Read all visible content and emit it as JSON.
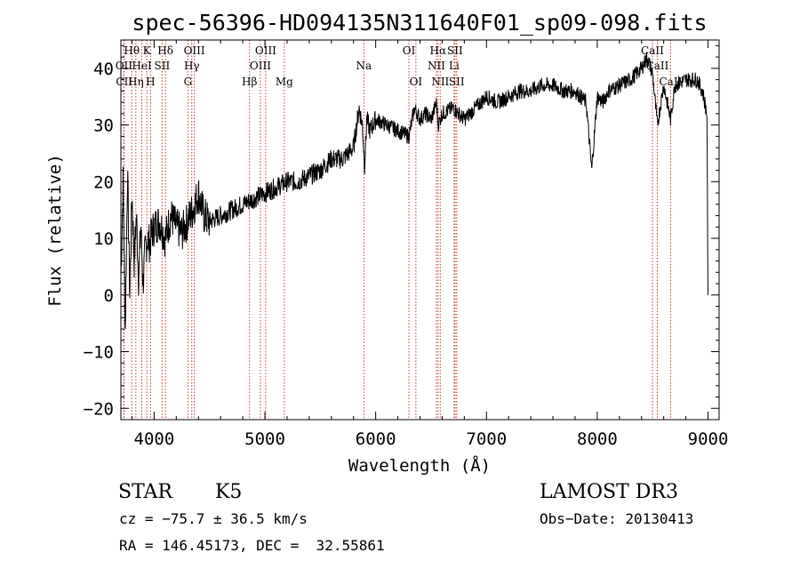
{
  "chart_data": {
    "type": "line",
    "title": "spec-56396-HD094135N311640F01_sp09-098.fits",
    "xlabel": "Wavelength (Å)",
    "ylabel": "Flux (relative)",
    "xlim": [
      3700,
      9100
    ],
    "ylim": [
      -22,
      45
    ],
    "x_ticks": [
      4000,
      5000,
      6000,
      7000,
      8000,
      9000
    ],
    "y_ticks": [
      -20,
      -10,
      0,
      10,
      20,
      30,
      40
    ],
    "grid": false,
    "series": [
      {
        "name": "flux",
        "x": [
          3700,
          3720,
          3740,
          3760,
          3780,
          3800,
          3820,
          3840,
          3860,
          3880,
          3900,
          3920,
          3940,
          3960,
          3980,
          4000,
          4050,
          4100,
          4150,
          4200,
          4250,
          4300,
          4350,
          4400,
          4450,
          4500,
          4600,
          4700,
          4800,
          4900,
          5000,
          5100,
          5200,
          5300,
          5400,
          5500,
          5600,
          5700,
          5800,
          5850,
          5880,
          5900,
          5920,
          5950,
          6000,
          6100,
          6200,
          6300,
          6350,
          6400,
          6450,
          6500,
          6550,
          6563,
          6600,
          6700,
          6800,
          6900,
          7000,
          7100,
          7200,
          7300,
          7400,
          7500,
          7600,
          7700,
          7800,
          7900,
          7950,
          8000,
          8050,
          8100,
          8200,
          8300,
          8400,
          8450,
          8500,
          8542,
          8600,
          8662,
          8700,
          8800,
          8900,
          8950,
          8990,
          9000
        ],
        "y": [
          3,
          20,
          -6,
          22,
          0,
          18,
          6,
          14,
          3,
          12,
          2,
          8,
          10,
          9,
          11,
          12,
          13,
          10,
          14,
          12,
          11,
          13,
          15,
          18,
          14,
          13,
          14,
          15,
          16,
          17,
          18,
          19,
          20,
          20,
          21,
          22,
          24,
          24,
          26,
          33,
          30,
          23,
          31,
          29,
          31,
          30,
          29,
          28,
          33,
          31,
          32,
          31,
          34,
          30,
          32,
          33,
          31,
          33,
          35,
          34,
          35,
          36,
          36,
          37,
          37,
          36,
          36,
          34,
          22,
          35,
          34,
          36,
          37,
          38,
          40,
          42,
          39,
          30,
          37,
          31,
          37,
          38,
          38,
          36,
          32,
          0
        ]
      }
    ],
    "line_markers": [
      {
        "label": "Hθ",
        "wavelength": 3798,
        "row": 1
      },
      {
        "label": "K",
        "wavelength": 3934,
        "row": 1
      },
      {
        "label": "Hδ",
        "wavelength": 4102,
        "row": 1
      },
      {
        "label": "OIII",
        "wavelength": 4363,
        "row": 1
      },
      {
        "label": "OIII",
        "wavelength": 5007,
        "row": 1
      },
      {
        "label": "OI",
        "wavelength": 6300,
        "row": 1
      },
      {
        "label": "Hα",
        "wavelength": 6563,
        "row": 1
      },
      {
        "label": "SII",
        "wavelength": 6716,
        "row": 1
      },
      {
        "label": "CaII",
        "wavelength": 8498,
        "row": 1
      },
      {
        "label": "OII",
        "wavelength": 3727,
        "row": 2
      },
      {
        "label": "HeI",
        "wavelength": 3889,
        "row": 2
      },
      {
        "label": "SII",
        "wavelength": 4072,
        "row": 2
      },
      {
        "label": "Hγ",
        "wavelength": 4340,
        "row": 2
      },
      {
        "label": "OIII",
        "wavelength": 4959,
        "row": 2
      },
      {
        "label": "Na",
        "wavelength": 5893,
        "row": 2
      },
      {
        "label": "NII",
        "wavelength": 6548,
        "row": 2
      },
      {
        "label": "Li",
        "wavelength": 6708,
        "row": 2
      },
      {
        "label": "CaII",
        "wavelength": 8542,
        "row": 2
      },
      {
        "label": "CII",
        "wavelength": 3730,
        "row": 3
      },
      {
        "label": "Hη",
        "wavelength": 3835,
        "row": 3
      },
      {
        "label": "H",
        "wavelength": 3968,
        "row": 3
      },
      {
        "label": "G",
        "wavelength": 4305,
        "row": 3
      },
      {
        "label": "Hβ",
        "wavelength": 4861,
        "row": 3
      },
      {
        "label": "Mg",
        "wavelength": 5175,
        "row": 3
      },
      {
        "label": "OI",
        "wavelength": 6363,
        "row": 3
      },
      {
        "label": "NII",
        "wavelength": 6583,
        "row": 3
      },
      {
        "label": "SII",
        "wavelength": 6731,
        "row": 3
      },
      {
        "label": "CaII",
        "wavelength": 8662,
        "row": 3
      }
    ]
  },
  "info": {
    "object_class": "STAR",
    "subclass": "K5",
    "survey": "LAMOST DR3",
    "redshift_line": "cz = −75.7 ± 36.5 km/s",
    "obs_date_line": "Obs−Date: 20130413",
    "coords_line": "RA = 146.45173, DEC =  32.55861"
  }
}
